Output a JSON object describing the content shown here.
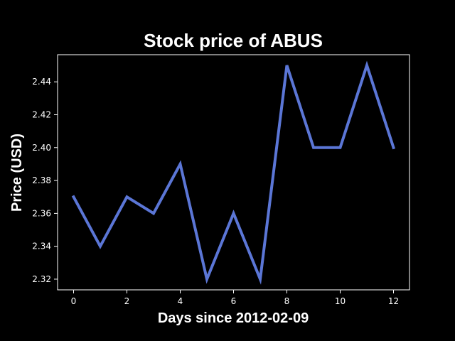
{
  "chart_data": {
    "type": "line",
    "title": "Stock price of ABUS",
    "xlabel": "Days since 2012-02-09",
    "ylabel": "Price (USD)",
    "x": [
      0,
      1,
      2,
      3,
      4,
      5,
      6,
      7,
      8,
      9,
      10,
      11,
      12
    ],
    "series": [
      {
        "values": [
          2.37,
          2.34,
          2.37,
          2.36,
          2.39,
          2.32,
          2.36,
          2.32,
          2.45,
          2.4,
          2.4,
          2.45,
          2.4
        ]
      }
    ],
    "xlim": [
      -0.6,
      12.6
    ],
    "ylim": [
      2.3135,
      2.4565
    ],
    "xticks": [
      0,
      2,
      4,
      6,
      8,
      10,
      12
    ],
    "xtick_labels": [
      "0",
      "2",
      "4",
      "6",
      "8",
      "10",
      "12"
    ],
    "yticks": [
      2.32,
      2.34,
      2.36,
      2.38,
      2.4,
      2.42,
      2.44
    ],
    "ytick_labels": [
      "2.32",
      "2.34",
      "2.36",
      "2.38",
      "2.40",
      "2.42",
      "2.44"
    ],
    "grid": false,
    "legend": "none",
    "colors": {
      "background": "#000000",
      "foreground": "#ffffff",
      "line": "#5b76d6"
    }
  }
}
